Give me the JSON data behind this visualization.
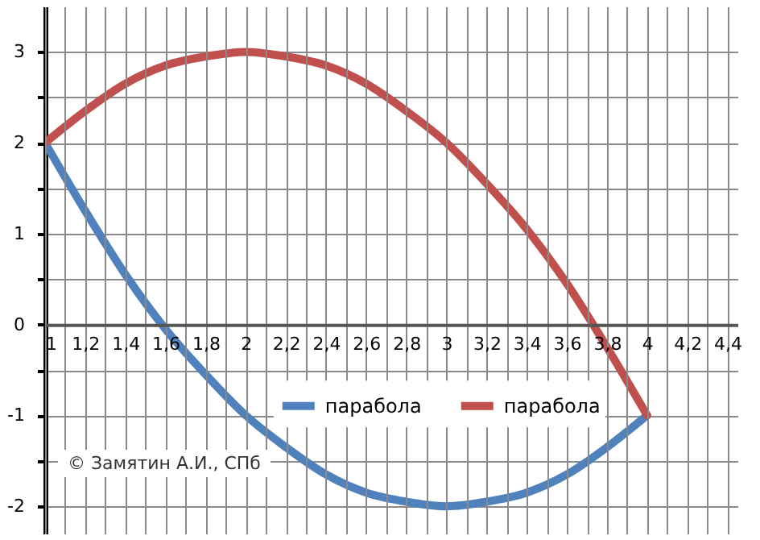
{
  "chart_data": {
    "type": "line",
    "x": [
      1,
      1.2,
      1.4,
      1.6,
      1.8,
      2,
      2.2,
      2.4,
      2.6,
      2.8,
      3,
      3.2,
      3.4,
      3.6,
      3.8,
      4
    ],
    "series": [
      {
        "name": "парабола",
        "color": "#4f81bd",
        "values": [
          2,
          1.25,
          0.55,
          -0.05,
          -0.55,
          -1,
          -1.35,
          -1.65,
          -1.85,
          -1.95,
          -2,
          -1.95,
          -1.85,
          -1.65,
          -1.35,
          -1
        ]
      },
      {
        "name": "парабола",
        "color": "#c0504d",
        "values": [
          2,
          2.35,
          2.65,
          2.85,
          2.95,
          3,
          2.95,
          2.85,
          2.65,
          2.35,
          2,
          1.55,
          1.05,
          0.45,
          -0.25,
          -1
        ]
      }
    ],
    "xlim": [
      1,
      4.45
    ],
    "ylim": [
      -2.3,
      3.5
    ],
    "xticks": [
      1,
      {
        "value": 1.1,
        "label": null
      },
      {
        "value": 1.2,
        "label": "1,2"
      },
      {
        "value": 1.3,
        "label": null
      },
      {
        "value": 1.4,
        "label": "1,4"
      },
      {
        "value": 1.5,
        "label": null
      },
      {
        "value": 1.6,
        "label": "1,6"
      },
      {
        "value": 1.7,
        "label": null
      },
      {
        "value": 1.8,
        "label": "1,8"
      },
      {
        "value": 1.9,
        "label": null
      },
      2,
      {
        "value": 2.1,
        "label": null
      },
      {
        "value": 2.2,
        "label": "2,2"
      },
      {
        "value": 2.3,
        "label": null
      },
      {
        "value": 2.4,
        "label": "2,4"
      },
      {
        "value": 2.5,
        "label": null
      },
      {
        "value": 2.6,
        "label": "2,6"
      },
      {
        "value": 2.7,
        "label": null
      },
      {
        "value": 2.8,
        "label": "2,8"
      },
      {
        "value": 2.9,
        "label": null
      },
      3,
      {
        "value": 3.1,
        "label": null
      },
      {
        "value": 3.2,
        "label": "3,2"
      },
      {
        "value": 3.3,
        "label": null
      },
      {
        "value": 3.4,
        "label": "3,4"
      },
      {
        "value": 3.5,
        "label": null
      },
      {
        "value": 3.6,
        "label": "3,6"
      },
      {
        "value": 3.7,
        "label": null
      },
      {
        "value": 3.8,
        "label": "3,8"
      },
      {
        "value": 3.9,
        "label": null
      },
      4,
      {
        "value": 4.1,
        "label": null
      },
      {
        "value": 4.2,
        "label": "4,2"
      },
      {
        "value": 4.3,
        "label": null
      },
      {
        "value": 4.4,
        "label": "4,4"
      }
    ],
    "yticks": [
      -2,
      {
        "value": -1.5,
        "label": null
      },
      -1,
      {
        "value": -0.5,
        "label": null
      },
      0,
      {
        "value": 0.5,
        "label": null
      },
      1,
      {
        "value": 1.5,
        "label": null
      },
      2,
      {
        "value": 2.5,
        "label": null
      },
      3
    ],
    "grid": true,
    "legend": "bottom",
    "marker": "none",
    "line_style": "solid",
    "annotations": [
      "© Замятин А.И., СПб"
    ]
  }
}
